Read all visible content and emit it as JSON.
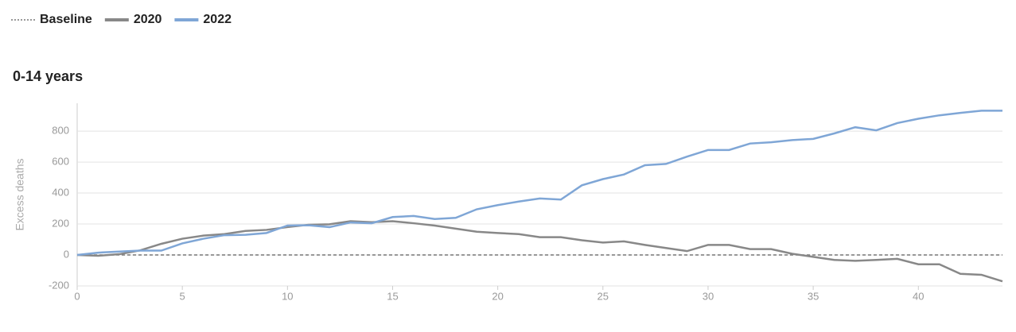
{
  "chart_data": {
    "type": "line",
    "title": "0-14 years",
    "ylabel": "Excess deaths",
    "x": [
      0,
      1,
      2,
      3,
      4,
      5,
      6,
      7,
      8,
      9,
      10,
      11,
      12,
      13,
      14,
      15,
      16,
      17,
      18,
      19,
      20,
      21,
      22,
      23,
      24,
      25,
      26,
      27,
      28,
      29,
      30,
      31,
      32,
      33,
      34,
      35,
      36,
      37,
      38,
      39,
      40,
      41,
      42,
      43,
      44
    ],
    "series": [
      {
        "name": "Baseline",
        "color": "#777777",
        "style": "dashed",
        "values": [
          0,
          0,
          0,
          0,
          0,
          0,
          0,
          0,
          0,
          0,
          0,
          0,
          0,
          0,
          0,
          0,
          0,
          0,
          0,
          0,
          0,
          0,
          0,
          0,
          0,
          0,
          0,
          0,
          0,
          0,
          0,
          0,
          0,
          0,
          0,
          0,
          0,
          0,
          0,
          0,
          0,
          0,
          0,
          0,
          0
        ]
      },
      {
        "name": "2020",
        "color": "#888888",
        "style": "solid",
        "values": [
          0,
          -5,
          5,
          30,
          72,
          105,
          125,
          135,
          155,
          162,
          180,
          195,
          198,
          218,
          212,
          218,
          205,
          190,
          170,
          150,
          142,
          135,
          115,
          115,
          95,
          80,
          88,
          65,
          45,
          25,
          65,
          65,
          38,
          38,
          8,
          -12,
          -32,
          -38,
          -32,
          -25,
          -60,
          -60,
          -122,
          -128,
          -170
        ]
      },
      {
        "name": "2022",
        "color": "#7fa6d6",
        "style": "solid",
        "values": [
          0,
          15,
          22,
          28,
          28,
          75,
          105,
          128,
          130,
          142,
          190,
          192,
          180,
          210,
          205,
          245,
          252,
          232,
          240,
          295,
          322,
          345,
          365,
          358,
          450,
          490,
          520,
          580,
          588,
          635,
          678,
          678,
          720,
          728,
          742,
          750,
          785,
          825,
          805,
          852,
          880,
          902,
          918,
          932,
          932
        ]
      }
    ],
    "xlim": [
      0,
      44
    ],
    "xticks": [
      0,
      5,
      10,
      15,
      20,
      25,
      30,
      35,
      40
    ],
    "ylim": [
      -200,
      980
    ],
    "yticks": [
      -200,
      0,
      200,
      400,
      600,
      800
    ],
    "grid": true
  }
}
